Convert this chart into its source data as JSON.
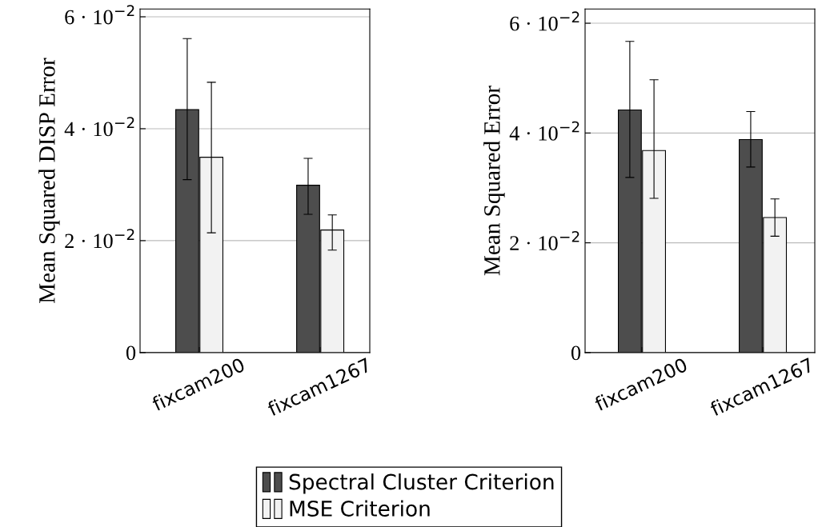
{
  "chart_data": [
    {
      "type": "bar",
      "ylabel": "Mean Squared DISP Error",
      "categories": [
        "fixcam200",
        "fixcam1267"
      ],
      "ylim": [
        0,
        0.0614
      ],
      "yticks": [
        {
          "value": 0,
          "label": "0"
        },
        {
          "value": 0.02,
          "label": "2 · 10$^{−2}$"
        },
        {
          "value": 0.04,
          "label": "4 · 10$^{−2}$"
        },
        {
          "value": 0.06,
          "label": "6 · 10$^{−2}$"
        }
      ],
      "grid": "y",
      "legend": "bottom",
      "series": [
        {
          "name": "Spectral Cluster Criterion",
          "color": "#4d4d4d",
          "values": [
            0.0434,
            0.0299
          ],
          "errors": [
            [
              0.0309,
              0.0561
            ],
            [
              0.0247,
              0.0347
            ]
          ]
        },
        {
          "name": "MSE Criterion",
          "color": "#f2f2f2",
          "values": [
            0.0349,
            0.0219
          ],
          "errors": [
            [
              0.0214,
              0.0483
            ],
            [
              0.0183,
              0.0246
            ]
          ]
        }
      ]
    },
    {
      "type": "bar",
      "ylabel": "Mean Squared Error",
      "categories": [
        "fixcam200",
        "fixcam1267"
      ],
      "ylim": [
        0,
        0.0626
      ],
      "yticks": [
        {
          "value": 0,
          "label": "0"
        },
        {
          "value": 0.02,
          "label": "2 · 10$^{−2}$"
        },
        {
          "value": 0.04,
          "label": "4 · 10$^{−2}$"
        },
        {
          "value": 0.06,
          "label": "6 · 10$^{−2}$"
        }
      ],
      "grid": "y",
      "series": [
        {
          "color": "#4d4d4d",
          "values": [
            0.0442,
            0.0388
          ],
          "errors": [
            [
              0.0319,
              0.0567
            ],
            [
              0.0338,
              0.0439
            ]
          ]
        },
        {
          "color": "#f2f2f2",
          "values": [
            0.0368,
            0.0246
          ],
          "errors": [
            [
              0.0281,
              0.0497
            ],
            [
              0.0212,
              0.028
            ]
          ]
        }
      ]
    }
  ]
}
